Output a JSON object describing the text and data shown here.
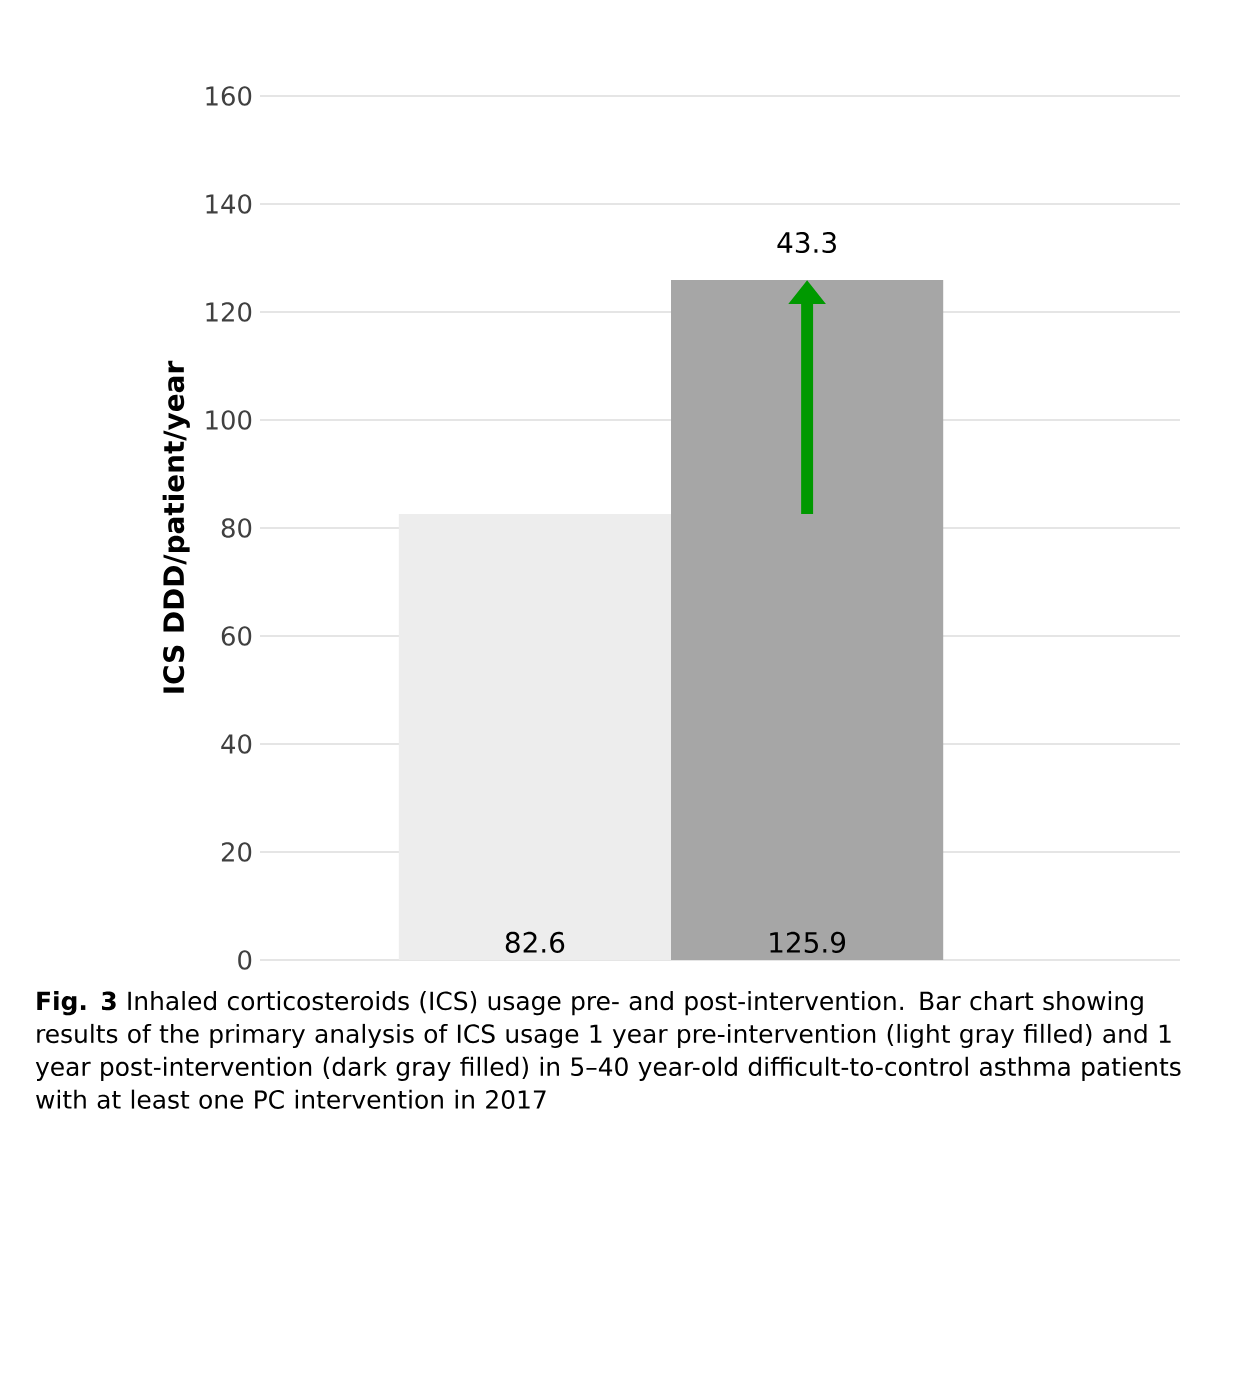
{
  "chart_data": {
    "type": "bar",
    "ylabel": "ICS DDD/patient/year",
    "categories": [
      null,
      null
    ],
    "values": [
      82.6,
      125.9
    ],
    "colors": [
      "#ededed",
      "#a6a6a6"
    ],
    "ylim": [
      0,
      160
    ],
    "yticks": [
      0,
      20,
      40,
      60,
      80,
      100,
      120,
      140,
      160
    ],
    "grid": "y",
    "data_labels": true,
    "annotations": [
      {
        "text": "43.3",
        "y": 125.9
      },
      "**Fig. 3** Inhaled corticosteroids (ICS) usage pre- and post-intervention. Bar chart showing results of the primary analysis of ICS usage 1 year pre-intervention (light gray filled) and 1 year post-intervention (dark gray filled) in 5–40 year-old difficult-to-control asthma patients with at least one PC intervention in 2017"
    ]
  }
}
